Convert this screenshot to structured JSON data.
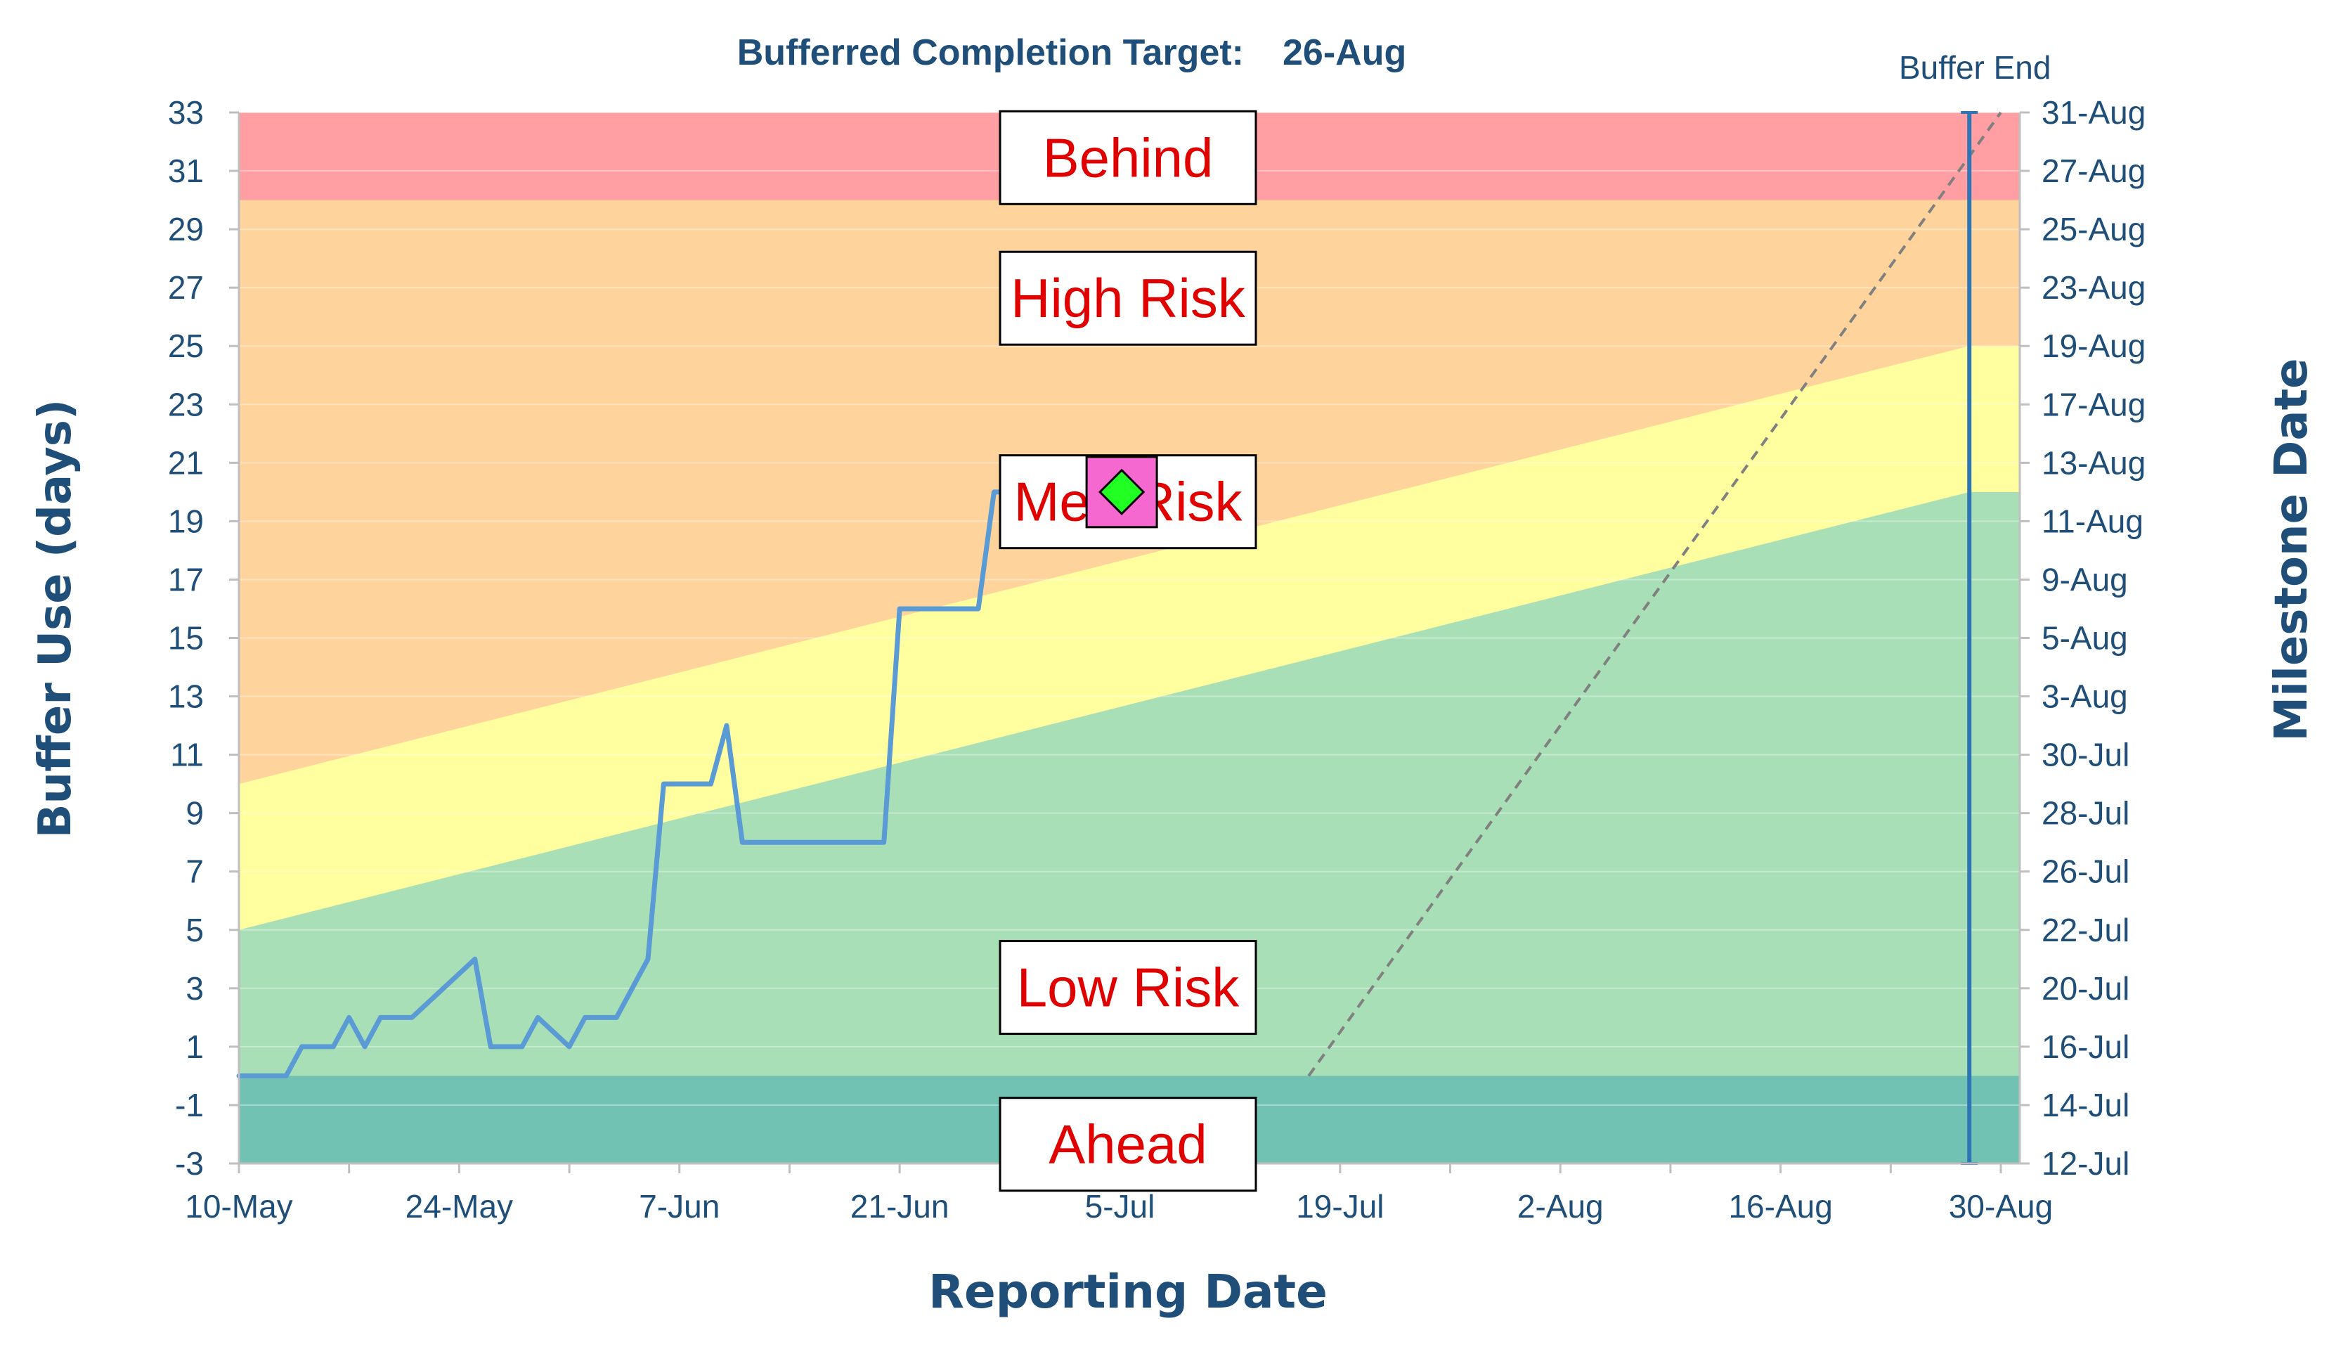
{
  "chart_data": {
    "type": "line",
    "title_label": "Bufferred Completion Target:",
    "title_value": "26-Aug",
    "xlabel": "Reporting Date",
    "ylabel": "Buffer Use (days)",
    "y2label": "Milestone Date",
    "x_ticks": [
      "10-May",
      "24-May",
      "7-Jun",
      "21-Jun",
      "5-Jul",
      "19-Jul",
      "2-Aug",
      "16-Aug",
      "30-Aug"
    ],
    "y_ticks": [
      33,
      31,
      29,
      27,
      25,
      23,
      21,
      19,
      17,
      15,
      13,
      11,
      9,
      7,
      5,
      3,
      1,
      -1,
      -3
    ],
    "ylim": [
      -3,
      33
    ],
    "y2_ticks": [
      "31-Aug",
      "27-Aug",
      "25-Aug",
      "23-Aug",
      "19-Aug",
      "17-Aug",
      "13-Aug",
      "11-Aug",
      "9-Aug",
      "5-Aug",
      "3-Aug",
      "30-Jul",
      "28-Jul",
      "26-Jul",
      "22-Jul",
      "20-Jul",
      "16-Jul",
      "14-Jul",
      "12-Jul"
    ],
    "zones": [
      {
        "name": "Behind",
        "color": "#ff9ea3"
      },
      {
        "name": "High Risk",
        "color": "#ffd49c"
      },
      {
        "name": "Med Risk",
        "color": "#ffff9f"
      },
      {
        "name": "Low Risk",
        "color": "#a8dfb6"
      },
      {
        "name": "Ahead",
        "color": "#71c2b3"
      }
    ],
    "zone_boundaries": {
      "behind_from": 30,
      "ahead_below": 0,
      "high_risk_from": {
        "start": 10,
        "end": 25
      },
      "med_risk_from": {
        "start": 5,
        "end": 20
      }
    },
    "series": [
      {
        "color": "#5b9bd5",
        "x": [
          "10-May",
          "13-May",
          "14-May",
          "16-May",
          "17-May",
          "18-May",
          "19-May",
          "21-May",
          "25-May",
          "26-May",
          "28-May",
          "29-May",
          "31-May",
          "1-Jun",
          "3-Jun",
          "5-Jun",
          "6-Jun",
          "9-Jun",
          "10-Jun",
          "11-Jun",
          "12-Jun",
          "20-Jun",
          "21-Jun",
          "26-Jun",
          "27-Jun",
          "1-Jul",
          "4-Jul"
        ],
        "y": [
          0,
          0,
          1,
          1,
          2,
          1,
          2,
          2,
          4,
          1,
          1,
          2,
          1,
          2,
          2,
          4,
          10,
          10,
          12,
          8,
          8,
          8,
          16,
          16,
          20,
          20,
          20
        ]
      }
    ],
    "current_marker": {
      "x": "4-Jul",
      "y": 20,
      "fill": "#22ff22",
      "box": "#f568cf"
    },
    "trend_line": {
      "x_start": "17-Jul",
      "y_start": 0,
      "x_end": "30-Aug",
      "y_end": 33,
      "color": "#808080"
    },
    "buffer_end": {
      "label": "Buffer End",
      "x": "28-Aug",
      "color": "#2e75b6"
    },
    "grid": true
  }
}
